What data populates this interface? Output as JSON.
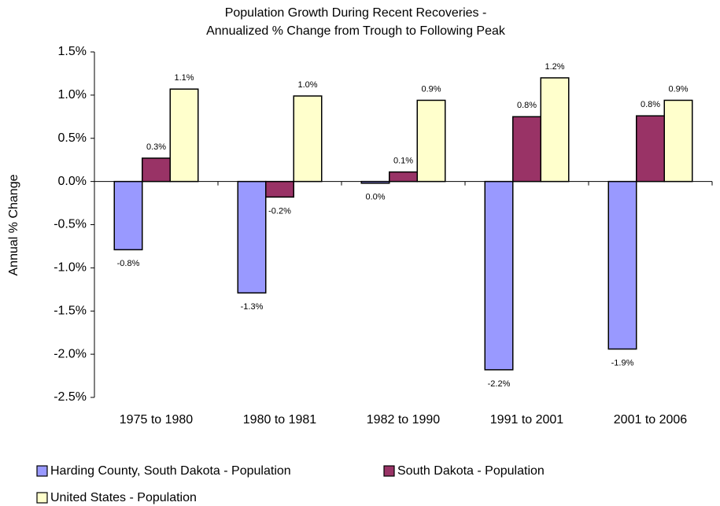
{
  "chart_data": {
    "type": "bar",
    "title": [
      "Population Growth During Recent Recoveries -",
      "Annualized % Change from Trough to Following Peak"
    ],
    "y_label": "Annual % Change",
    "categories": [
      "1975 to 1980",
      "1980 to 1981",
      "1982 to 1990",
      "1991 to 2001",
      "2001 to 2006"
    ],
    "series": [
      {
        "name": "Harding County, South Dakota - Population",
        "color": "#9999ff",
        "values": [
          -0.79,
          -1.29,
          -0.02,
          -2.18,
          -1.94
        ],
        "value_labels": [
          "-0.8%",
          "-1.3%",
          "0.0%",
          "-2.2%",
          "-1.9%"
        ]
      },
      {
        "name": "South Dakota - Population",
        "color": "#993366",
        "values": [
          0.27,
          -0.18,
          0.11,
          0.75,
          0.76
        ],
        "value_labels": [
          "0.3%",
          "-0.2%",
          "0.1%",
          "0.8%",
          "0.8%"
        ]
      },
      {
        "name": "United States - Population",
        "color": "#ffffcc",
        "values": [
          1.07,
          0.99,
          0.94,
          1.2,
          0.94
        ],
        "value_labels": [
          "1.1%",
          "1.0%",
          "0.9%",
          "1.2%",
          "0.9%"
        ]
      }
    ],
    "ylim": [
      -2.5,
      1.5
    ],
    "yticks": [
      {
        "value": 1.5,
        "label": "1.5%"
      },
      {
        "value": 1,
        "label": "1.0%"
      },
      {
        "value": 0.5,
        "label": "0.5%"
      },
      {
        "value": 0,
        "label": "0.0%"
      },
      {
        "value": -0.5,
        "label": "-0.5%"
      },
      {
        "value": -1,
        "label": "-1.0%"
      },
      {
        "value": -1.5,
        "label": "-1.5%"
      },
      {
        "value": -2,
        "label": "-2.0%"
      },
      {
        "value": -2.5,
        "label": "-2.5%"
      }
    ],
    "grid": false
  }
}
